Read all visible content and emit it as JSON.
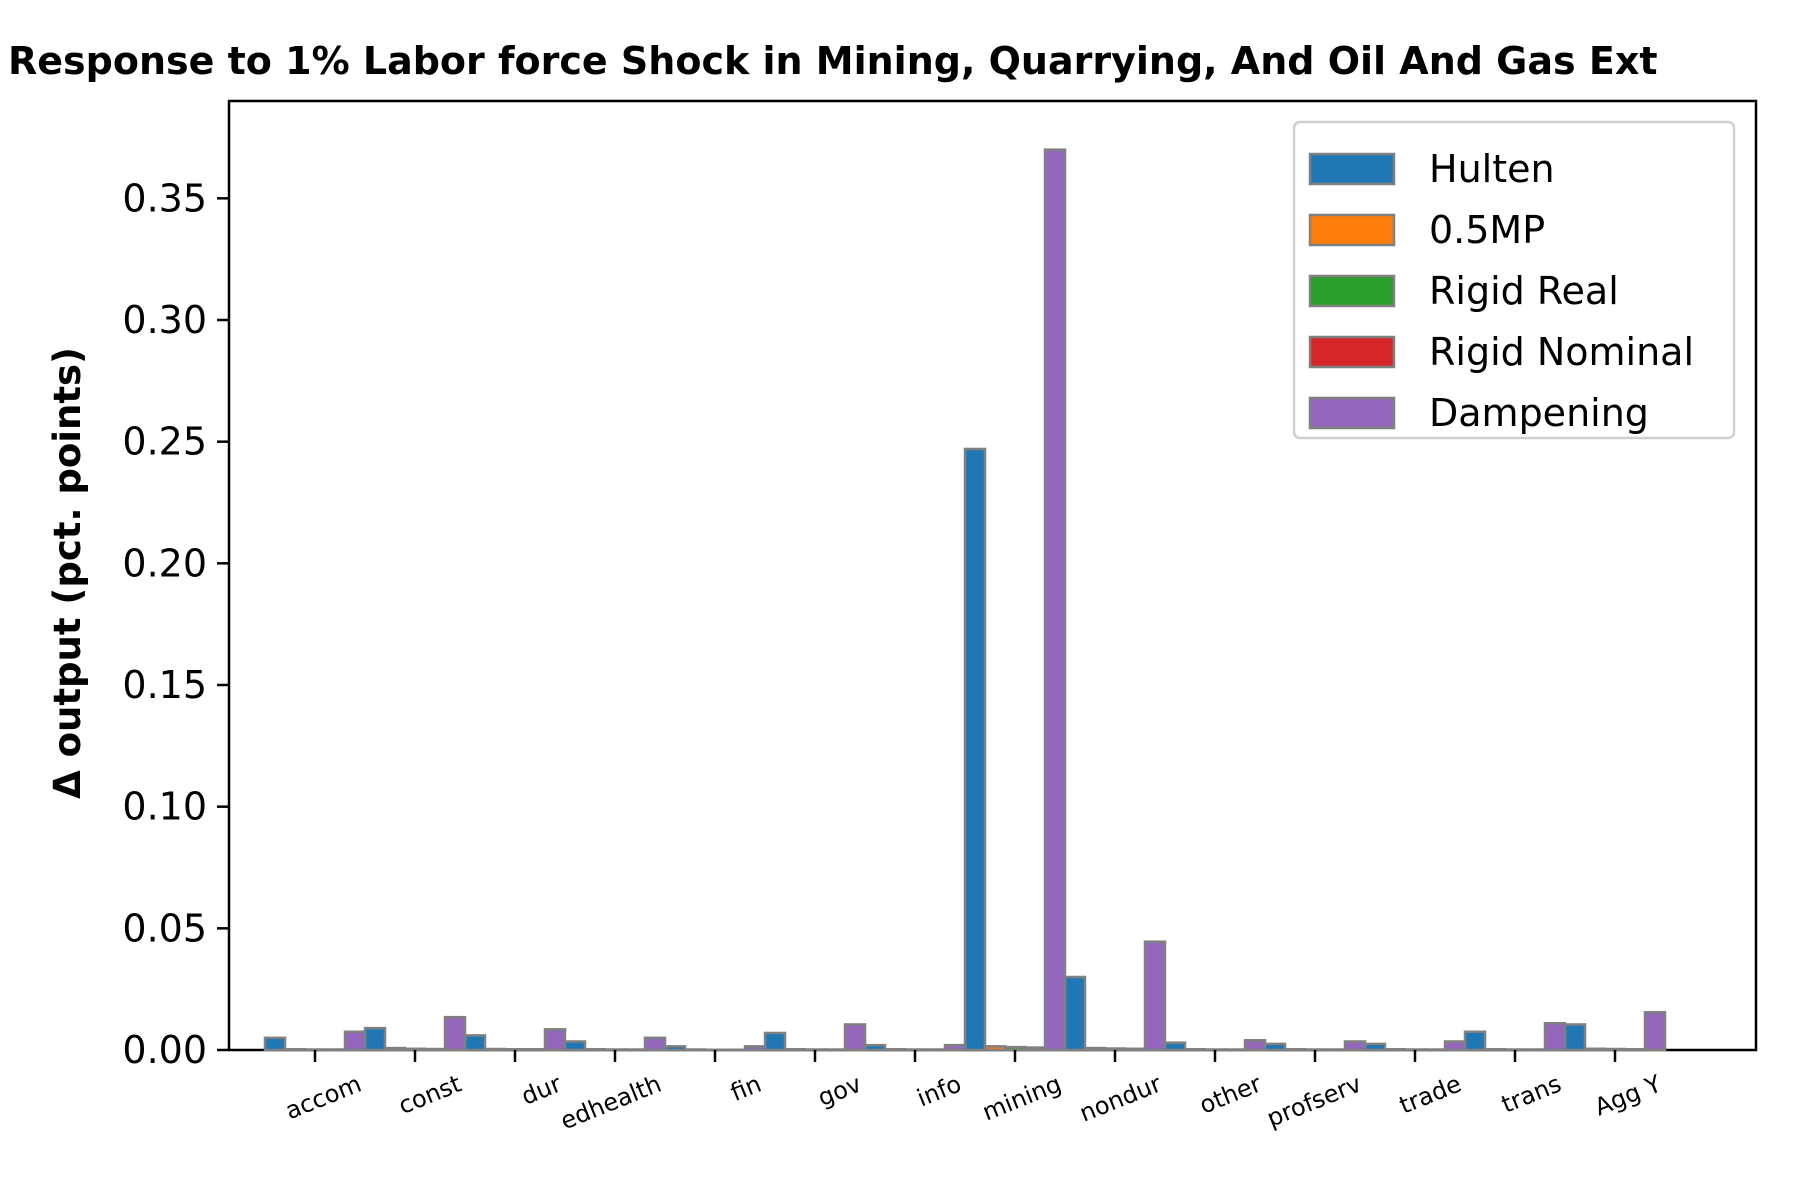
{
  "chart_data": {
    "type": "bar",
    "title": "Response to 1% Labor force Shock in Mining, Quarrying, And Oil And Gas Ext",
    "xlabel": "",
    "ylabel": "Δ output (pct. points)",
    "ylim": [
      0,
      0.39
    ],
    "yticks": [
      "0.00",
      "0.05",
      "0.10",
      "0.15",
      "0.20",
      "0.25",
      "0.30",
      "0.35"
    ],
    "grid": false,
    "legend_position": "top-right",
    "categories": [
      "accom",
      "const",
      "dur",
      "edhealth",
      "fin",
      "gov",
      "info",
      "mining",
      "nondur",
      "other",
      "profserv",
      "trade",
      "trans",
      "Agg Y"
    ],
    "series": [
      {
        "name": "Hulten",
        "color": "#1f77b4",
        "values": [
          0.005,
          0.009,
          0.006,
          0.0035,
          0.0015,
          0.007,
          0.002,
          0.247,
          0.03,
          0.003,
          0.0025,
          0.0025,
          0.0075,
          0.0105
        ]
      },
      {
        "name": "0.5MP",
        "color": "#ff7f0e",
        "values": [
          0.0003,
          0.0008,
          0.0004,
          0.0003,
          0.0002,
          0.0003,
          0.0003,
          0.0015,
          0.0008,
          0.0003,
          0.0003,
          0.0003,
          0.0003,
          0.0005
        ]
      },
      {
        "name": "Rigid Real",
        "color": "#2ca02c",
        "values": [
          0.0002,
          0.0005,
          0.0003,
          0.0002,
          0.0001,
          0.0002,
          0.0002,
          0.0012,
          0.0006,
          0.0002,
          0.0002,
          0.0002,
          0.0002,
          0.0004
        ]
      },
      {
        "name": "Rigid Nominal",
        "color": "#d62728",
        "values": [
          0.0002,
          0.0004,
          0.0003,
          0.0002,
          0.0001,
          0.0002,
          0.0002,
          0.001,
          0.0005,
          0.0002,
          0.0002,
          0.0002,
          0.0002,
          0.0003
        ]
      },
      {
        "name": "Dampening",
        "color": "#9467bd",
        "values": [
          0.0075,
          0.0135,
          0.0085,
          0.005,
          0.0015,
          0.0105,
          0.002,
          0.37,
          0.0445,
          0.004,
          0.0035,
          0.0035,
          0.011,
          0.0155
        ]
      }
    ]
  }
}
